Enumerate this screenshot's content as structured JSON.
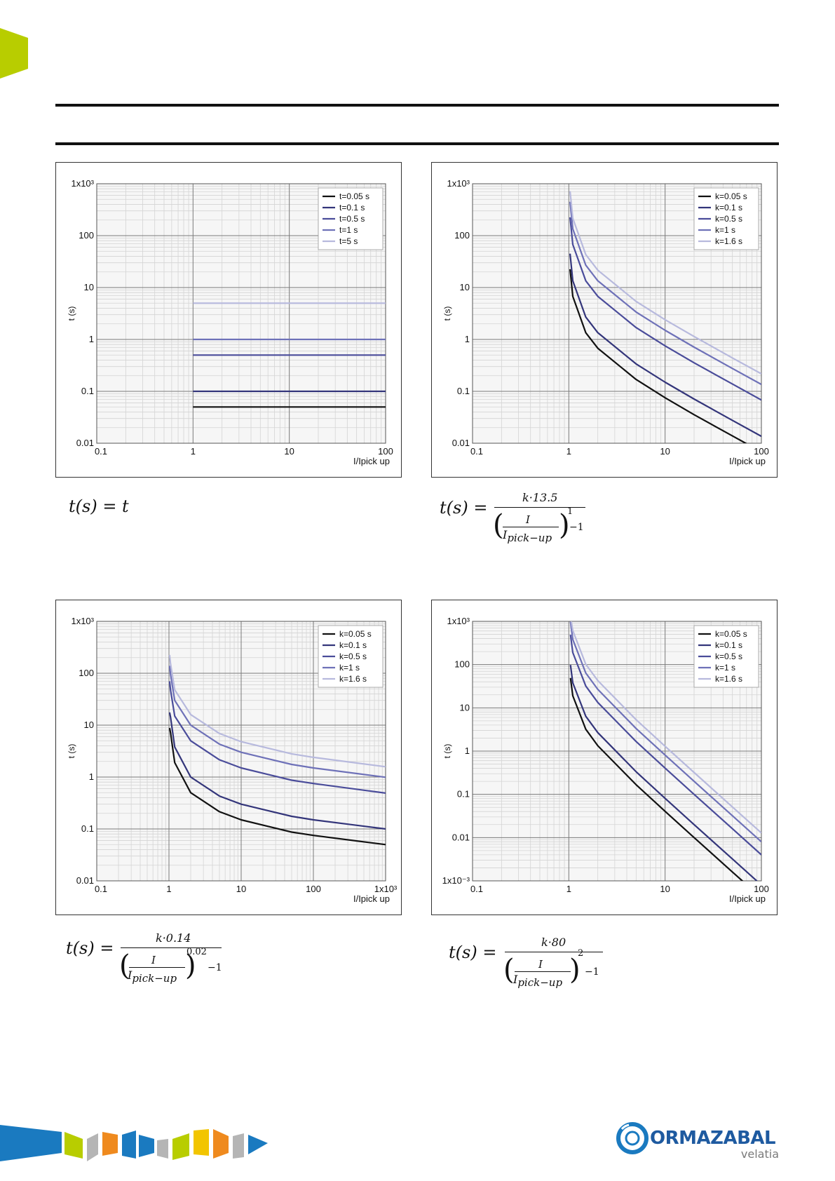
{
  "colors": {
    "accent": "#b8cd00",
    "series": [
      "#111111",
      "#33357a",
      "#4a4c9a",
      "#6e71b8",
      "#b7b9dd"
    ],
    "grid_major": "#7a7a7a",
    "grid_minor": "#d4d4d4"
  },
  "charts": [
    {
      "id": "definite-time",
      "chart_data": {
        "type": "line",
        "xscale": "log",
        "yscale": "log",
        "xlim": [
          0.1,
          100
        ],
        "ylim": [
          0.01,
          1000
        ],
        "xticks": [
          "0.1",
          "1",
          "10",
          "100"
        ],
        "yticks": [
          "0.01",
          "0.1",
          "1",
          "10",
          "100",
          "1x10³"
        ],
        "xlabel": "I/Ipick up",
        "ylabel": "t (s)",
        "legend_position": "top-right",
        "series": [
          {
            "name": "t=0.05 s",
            "x": [
              1,
              100
            ],
            "y": [
              0.05,
              0.05
            ]
          },
          {
            "name": "t=0.1 s",
            "x": [
              1,
              100
            ],
            "y": [
              0.1,
              0.1
            ]
          },
          {
            "name": "t=0.5 s",
            "x": [
              1,
              100
            ],
            "y": [
              0.5,
              0.5
            ]
          },
          {
            "name": "t=1 s",
            "x": [
              1,
              100
            ],
            "y": [
              1,
              1
            ]
          },
          {
            "name": "t=5 s",
            "x": [
              1,
              100
            ],
            "y": [
              5,
              5
            ]
          }
        ]
      }
    },
    {
      "id": "very-inverse",
      "chart_data": {
        "type": "line",
        "xscale": "log",
        "yscale": "log",
        "xlim": [
          0.1,
          100
        ],
        "ylim": [
          0.01,
          1000
        ],
        "xticks": [
          "0.1",
          "1",
          "10",
          "100"
        ],
        "yticks": [
          "0.01",
          "0.1",
          "1",
          "10",
          "100",
          "1x10³"
        ],
        "xlabel": "I/Ipick up",
        "ylabel": "t (s)",
        "legend_position": "top-right",
        "series": [
          {
            "name": "k=0.05 s",
            "x": [
              1.03,
              1.1,
              1.5,
              2,
              5,
              10,
              20,
              50,
              70
            ],
            "y": [
              22.5,
              6.75,
              1.35,
              0.675,
              0.169,
              0.075,
              0.0355,
              0.0138,
              0.0098
            ]
          },
          {
            "name": "k=0.1 s",
            "x": [
              1.03,
              1.1,
              1.5,
              2,
              5,
              10,
              20,
              50,
              100
            ],
            "y": [
              45,
              13.5,
              2.7,
              1.35,
              0.338,
              0.15,
              0.071,
              0.0276,
              0.0136
            ]
          },
          {
            "name": "k=0.5 s",
            "x": [
              1.03,
              1.1,
              1.5,
              2,
              5,
              10,
              20,
              50,
              100
            ],
            "y": [
              225,
              67.5,
              13.5,
              6.75,
              1.69,
              0.75,
              0.355,
              0.138,
              0.068
            ]
          },
          {
            "name": "k=1 s",
            "x": [
              1.03,
              1.1,
              1.5,
              2,
              5,
              10,
              20,
              50,
              100
            ],
            "y": [
              450,
              135,
              27,
              13.5,
              3.38,
              1.5,
              0.71,
              0.276,
              0.136
            ]
          },
          {
            "name": "k=1.6 s",
            "x": [
              1.03,
              1.1,
              1.5,
              2,
              5,
              10,
              20,
              50,
              100
            ],
            "y": [
              720,
              216,
              43.2,
              21.6,
              5.4,
              2.4,
              1.14,
              0.44,
              0.218
            ]
          }
        ]
      }
    },
    {
      "id": "normal-inverse",
      "chart_data": {
        "type": "line",
        "xscale": "log",
        "yscale": "log",
        "xlim": [
          0.1,
          1000
        ],
        "ylim": [
          0.01,
          1000
        ],
        "xticks": [
          "0.1",
          "1",
          "10",
          "100",
          "1x10³"
        ],
        "yticks": [
          "0.01",
          "0.1",
          "1",
          "10",
          "100",
          "1x10³"
        ],
        "xlabel": "I/Ipick up",
        "ylabel": "t (s)",
        "legend_position": "top-right",
        "series": [
          {
            "name": "k=0.05 s",
            "x": [
              1.02,
              1.05,
              1.2,
              2,
              5,
              10,
              50,
              100,
              1000
            ],
            "y": [
              8.8,
              7.2,
              1.9,
              0.5,
              0.215,
              0.15,
              0.087,
              0.075,
              0.05
            ]
          },
          {
            "name": "k=0.1 s",
            "x": [
              1.02,
              1.05,
              1.2,
              2,
              5,
              10,
              50,
              100,
              1000
            ],
            "y": [
              17.6,
              14.4,
              3.8,
              1.0,
              0.43,
              0.3,
              0.175,
              0.15,
              0.1
            ]
          },
          {
            "name": "k=0.5 s",
            "x": [
              1.02,
              1.05,
              1.2,
              2,
              5,
              10,
              50,
              100,
              1000
            ],
            "y": [
              70,
              48,
              15,
              5.0,
              2.15,
              1.5,
              0.87,
              0.75,
              0.49
            ]
          },
          {
            "name": "k=1 s",
            "x": [
              1.02,
              1.05,
              1.2,
              2,
              5,
              10,
              50,
              100,
              1000
            ],
            "y": [
              140,
              96,
              30,
              10,
              4.3,
              3.0,
              1.75,
              1.5,
              0.99
            ]
          },
          {
            "name": "k=1.6 s",
            "x": [
              1.02,
              1.05,
              1.2,
              2,
              5,
              10,
              50,
              100,
              1000
            ],
            "y": [
              225,
              154,
              48,
              16,
              6.9,
              4.8,
              2.8,
              2.4,
              1.58
            ]
          }
        ]
      }
    },
    {
      "id": "extremely-inverse",
      "chart_data": {
        "type": "line",
        "xscale": "log",
        "yscale": "log",
        "xlim": [
          0.1,
          100
        ],
        "ylim": [
          0.001,
          1000
        ],
        "xticks": [
          "0.1",
          "1",
          "10",
          "100"
        ],
        "yticks": [
          "1x10⁻³",
          "0.01",
          "0.1",
          "1",
          "10",
          "100",
          "1x10³"
        ],
        "xlabel": "I/Ipick up",
        "ylabel": "t (s)",
        "legend_position": "top-right",
        "series": [
          {
            "name": "k=0.05 s",
            "x": [
              1.04,
              1.1,
              1.5,
              2,
              5,
              10,
              20,
              50,
              80
            ],
            "y": [
              49,
              19,
              3.2,
              1.33,
              0.167,
              0.0404,
              0.01,
              0.0016,
              0.00063
            ]
          },
          {
            "name": "k=0.1 s",
            "x": [
              1.04,
              1.1,
              1.5,
              2,
              5,
              10,
              20,
              50,
              90
            ],
            "y": [
              98,
              38,
              6.4,
              2.67,
              0.333,
              0.0808,
              0.02,
              0.0032,
              0.00099
            ]
          },
          {
            "name": "k=0.5 s",
            "x": [
              1.04,
              1.1,
              1.5,
              2,
              5,
              10,
              20,
              50,
              100
            ],
            "y": [
              490,
              190,
              32,
              13.3,
              1.67,
              0.404,
              0.1,
              0.016,
              0.004
            ]
          },
          {
            "name": "k=1 s",
            "x": [
              1.04,
              1.1,
              1.5,
              2,
              5,
              10,
              20,
              50,
              100
            ],
            "y": [
              980,
              381,
              64,
              26.7,
              3.33,
              0.808,
              0.2,
              0.032,
              0.008
            ]
          },
          {
            "name": "k=1.6 s",
            "x": [
              1.06,
              1.1,
              1.5,
              2,
              5,
              10,
              20,
              50,
              100
            ],
            "y": [
              1000,
              610,
              102,
              42.7,
              5.33,
              1.29,
              0.32,
              0.051,
              0.0128
            ]
          }
        ]
      }
    }
  ],
  "formulas": {
    "f1": {
      "lhs": "t(s) = t"
    },
    "f2": {
      "lhs": "t(s) =",
      "numerator": "k·13.5",
      "i": "I",
      "ipu": "I",
      "ipu_sub": "pick−up",
      "exp": "1",
      "minus": "−1"
    },
    "f3": {
      "lhs": "t(s) =",
      "numerator": "k·0.14",
      "i": "I",
      "ipu": "I",
      "ipu_sub": "pick−up",
      "exp": "0.02",
      "minus": "−1"
    },
    "f4": {
      "lhs": "t(s) =",
      "numerator": "k·80",
      "i": "I",
      "ipu": "I",
      "ipu_sub": "pick−up",
      "exp": "2",
      "minus": "−1"
    }
  },
  "footer": {
    "brand": "ORMAZABAL",
    "sub": "velatia"
  }
}
